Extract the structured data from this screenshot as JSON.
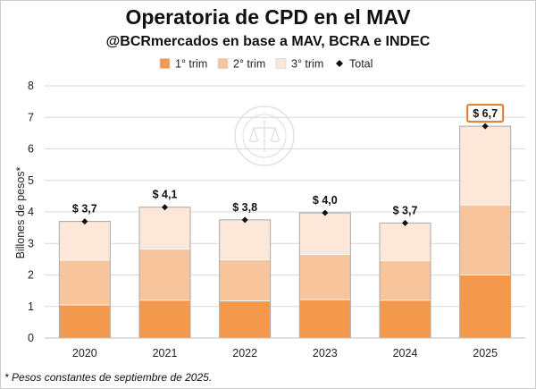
{
  "title": "Operatoria de CPD en el MAV",
  "subtitle": "@BCRmercados en base a MAV, BCRA e INDEC",
  "footnote": "* Pesos constantes de septiembre de 2025.",
  "watermark": "BOLSA DE COMERCIO DE ROSARIO",
  "colors": {
    "q1": "#F3994E",
    "q2": "#F8C49B",
    "q3": "#FDE7D8",
    "total": "#111111",
    "highlight_border": "#E07B2A",
    "grid": "#d9d9d9"
  },
  "chart_data": {
    "type": "bar",
    "stacked": true,
    "categories": [
      "2020",
      "2021",
      "2022",
      "2023",
      "2024",
      "2025"
    ],
    "series": [
      {
        "name": "1° trim",
        "values": [
          1.05,
          1.2,
          1.18,
          1.22,
          1.2,
          2.0
        ]
      },
      {
        "name": "2° trim",
        "values": [
          1.42,
          1.62,
          1.3,
          1.43,
          1.25,
          2.22
        ]
      },
      {
        "name": "3° trim",
        "values": [
          1.23,
          1.33,
          1.27,
          1.32,
          1.2,
          2.5
        ]
      }
    ],
    "total": {
      "name": "Total",
      "values": [
        3.7,
        4.15,
        3.75,
        3.97,
        3.65,
        6.72
      ]
    },
    "total_labels": [
      "$ 3,7",
      "$ 4,1",
      "$ 3,8",
      "$ 4,0",
      "$ 3,7",
      "$ 6,7"
    ],
    "highlight_index": 5,
    "ylabel": "Billones de pesos*",
    "ylim": [
      0,
      8
    ],
    "yticks": [
      "0",
      "1",
      "2",
      "3",
      "4",
      "5",
      "6",
      "7",
      "8"
    ],
    "grid": true,
    "legend_position": "top"
  }
}
